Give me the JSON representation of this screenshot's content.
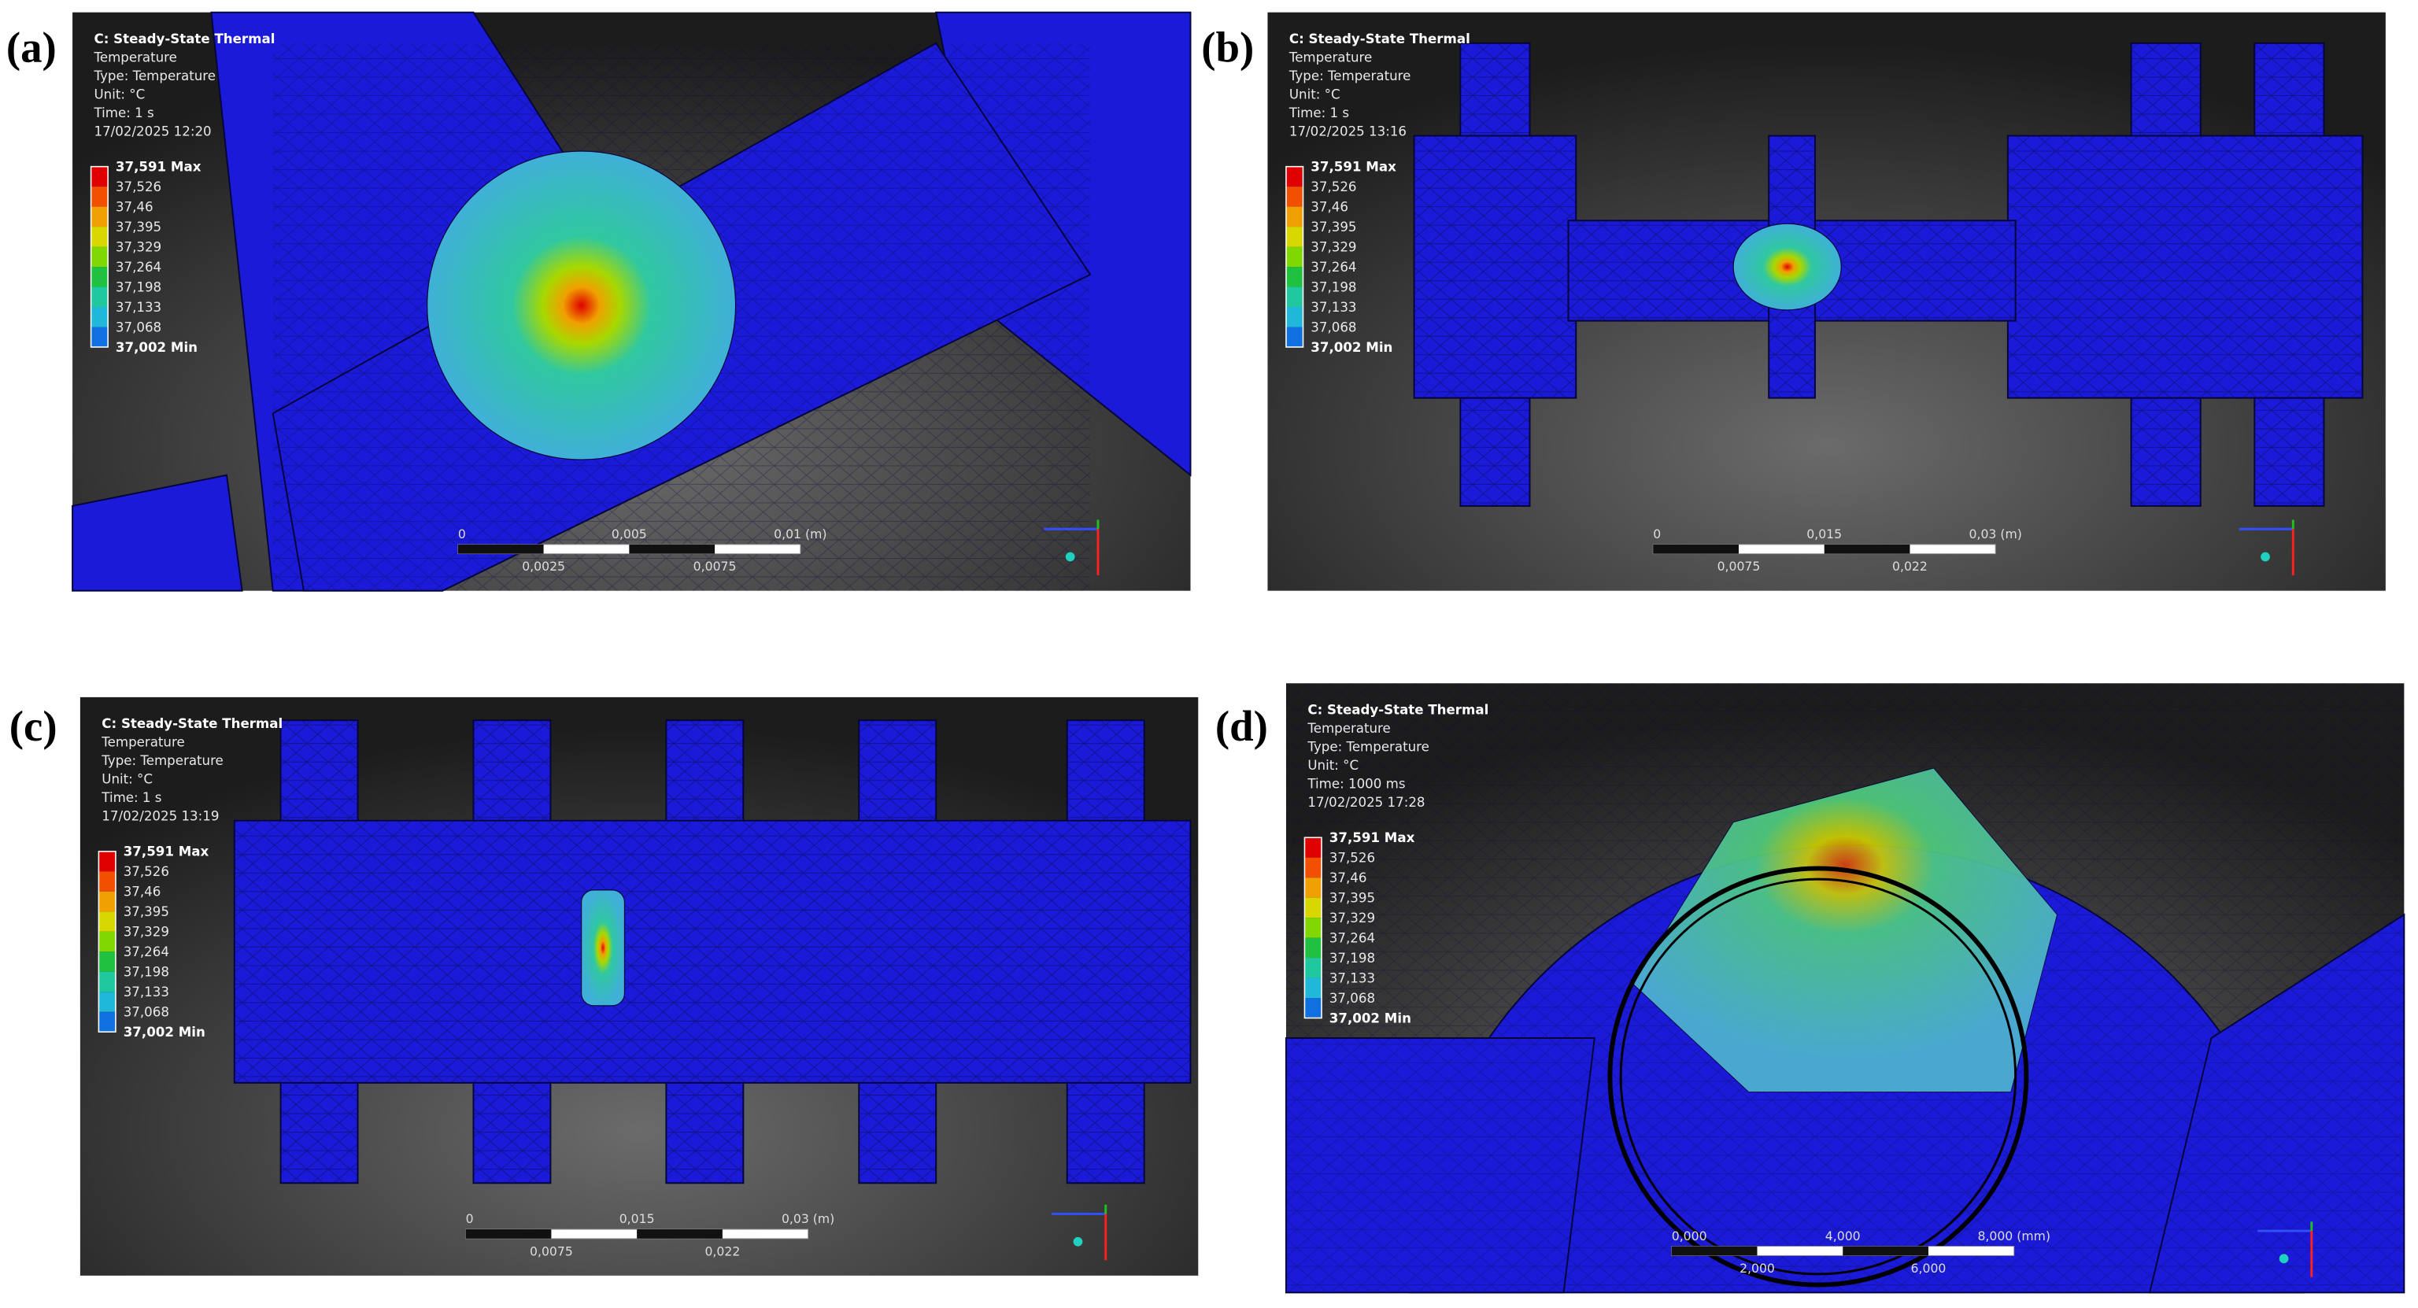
{
  "panels": [
    {
      "label": "(a)",
      "header": [
        "C: Steady-State Thermal",
        "Temperature",
        "Type: Temperature",
        "Unit: °C",
        "Time: 1 s",
        "17/02/2025 12:20"
      ],
      "legend": [
        "37,591 Max",
        "37,526",
        "37,46",
        "37,395",
        "37,329",
        "37,264",
        "37,198",
        "37,133",
        "37,068",
        "37,002 Min"
      ],
      "scale_top": [
        "0",
        "0,005",
        "0,01 (m)"
      ],
      "scale_bottom": [
        "0,0025",
        "0,0075"
      ]
    },
    {
      "label": "(b)",
      "header": [
        "C: Steady-State Thermal",
        "Temperature",
        "Type: Temperature",
        "Unit: °C",
        "Time: 1 s",
        "17/02/2025 13:16"
      ],
      "legend": [
        "37,591 Max",
        "37,526",
        "37,46",
        "37,395",
        "37,329",
        "37,264",
        "37,198",
        "37,133",
        "37,068",
        "37,002 Min"
      ],
      "scale_top": [
        "0",
        "0,015",
        "0,03 (m)"
      ],
      "scale_bottom": [
        "0,0075",
        "0,022"
      ]
    },
    {
      "label": "(c)",
      "header": [
        "C: Steady-State Thermal",
        "Temperature",
        "Type: Temperature",
        "Unit: °C",
        "Time: 1 s",
        "17/02/2025 13:19"
      ],
      "legend": [
        "37,591 Max",
        "37,526",
        "37,46",
        "37,395",
        "37,329",
        "37,264",
        "37,198",
        "37,133",
        "37,068",
        "37,002 Min"
      ],
      "scale_top": [
        "0",
        "0,015",
        "0,03 (m)"
      ],
      "scale_bottom": [
        "0,0075",
        "0,022"
      ]
    },
    {
      "label": "(d)",
      "header": [
        "C: Steady-State Thermal",
        "Temperature",
        "Type: Temperature",
        "Unit: °C",
        "Time: 1000 ms",
        "17/02/2025 17:28"
      ],
      "legend": [
        "37,591 Max",
        "37,526",
        "37,46",
        "37,395",
        "37,329",
        "37,264",
        "37,198",
        "37,133",
        "37,068",
        "37,002 Min"
      ],
      "scale_top": [
        "0,000",
        "4,000",
        "8,000 (mm)"
      ],
      "scale_bottom": [
        "2,000",
        "6,000"
      ]
    }
  ]
}
